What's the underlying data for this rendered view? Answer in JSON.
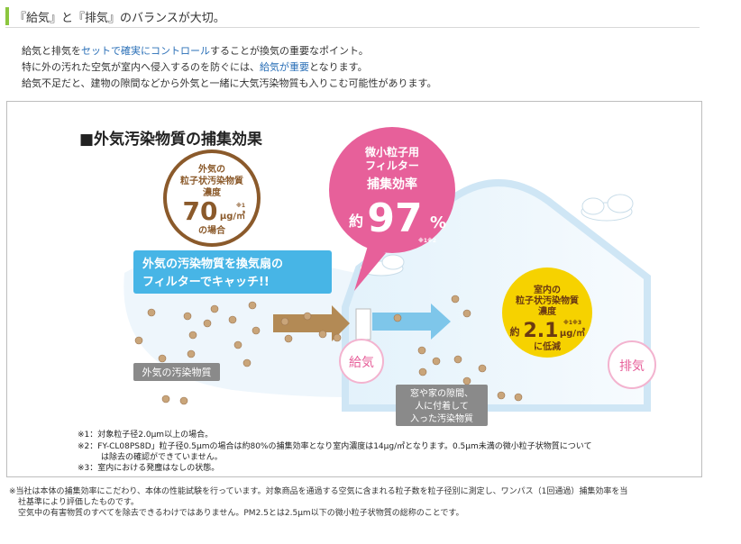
{
  "heading": {
    "title": "『給気』と『排気』のバランスが大切。"
  },
  "intro": {
    "l1a": "給気と排気を",
    "l1b": "セットで確実にコントロール",
    "l1c": "することが換気の重要なポイント。",
    "l2a": "特に外の汚れた空気が室内へ侵入するのを防ぐには、",
    "l2b": "給気が重要",
    "l2c": "となります。",
    "l3": "給気不足だと、建物の隙間などから外気と一緒に大気汚染物質も入りこむ可能性があります。"
  },
  "diagram": {
    "title": "■外気汚染物質の捕集効果",
    "outside_bubble": {
      "l1": "外気の",
      "l2": "粒子状汚染物質",
      "l3": "濃度",
      "value": "70",
      "unit": "μg/㎥",
      "note": "※1",
      "l4": "の場合"
    },
    "filter_bubble": {
      "l1": "微小粒子用",
      "l2": "フィルター",
      "l3": "捕集効率",
      "prefix": "約",
      "value": "97",
      "unit": "%",
      "note": "※1※2"
    },
    "banner": {
      "l1": "外気の汚染物質を換気扇の",
      "l2": "フィルターでキャッチ!!"
    },
    "outside_label": "外気の汚染物質",
    "indoor_bubble": {
      "l1": "室内の",
      "l2": "粒子状汚染物質",
      "l3": "濃度",
      "prefix": "約",
      "value": "2.1",
      "unit": "μg/㎥",
      "note": "※1※3",
      "l4": "に低減"
    },
    "gap_label": {
      "l1": "窓や家の隙間、",
      "l2": "人に付着して",
      "l3": "入った汚染物質"
    },
    "supply_label": "給気",
    "exhaust_label": "排気",
    "footnotes": [
      "※1：対象粒子径2.0μm以上の場合。",
      "※2：FY-CL08PS8D」粒子径0.5μmの場合は約80%の捕集効率となり室内濃度は14μg/㎥となります。0.5μm未満の微小粒子状物質について",
      "は除去の確認ができていません。",
      "※3：室内における発塵はなしの状態。"
    ]
  },
  "footer": {
    "l1": "※当社は本体の捕集効率にこだわり、本体の性能試験を行っています。対象商品を通過する空気に含まれる粒子数を粒子径別に測定し、ワンパス（1回通過）捕集効率を当",
    "l2": "社基準により評価したものです。",
    "l3": "空気中の有害物質のすべてを除去できるわけではありません。PM2.5とは2.5μm以下の微小粒子状物質の総称のことです。"
  },
  "colors": {
    "accent_green": "#8cc63f",
    "link_blue": "#2a6fb7",
    "pink": "#e7609a",
    "yellow": "#f6d200",
    "brown": "#8b5a2b",
    "sky": "#47b5e6"
  }
}
